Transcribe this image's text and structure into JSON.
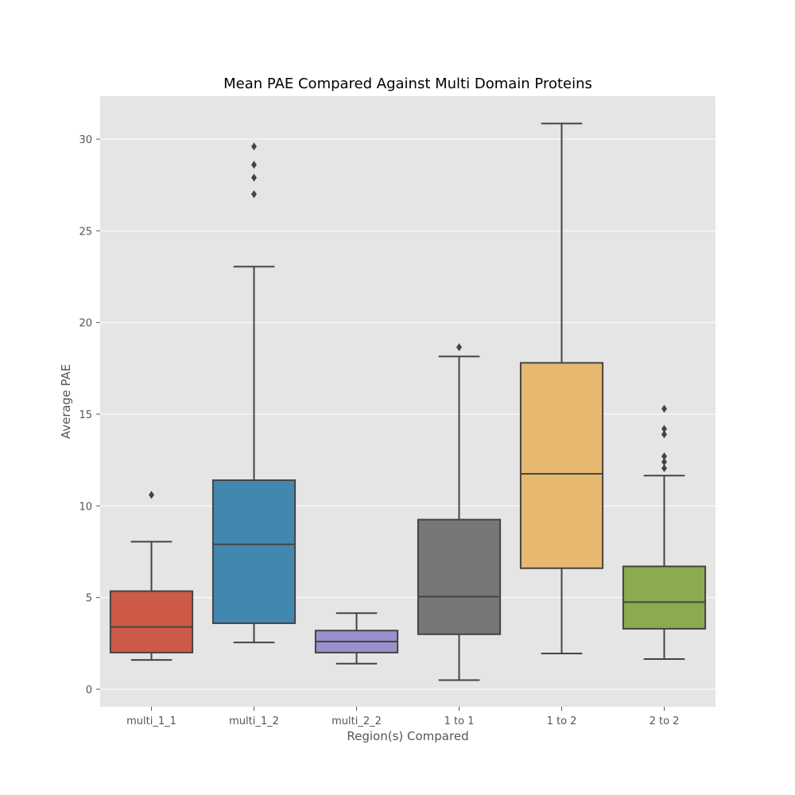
{
  "chart_data": {
    "type": "box",
    "title": "Mean PAE Compared Against Multi Domain Proteins",
    "xlabel": "Region(s) Compared",
    "ylabel": "Average PAE",
    "ylim": [
      -1,
      32.2
    ],
    "yticks": [
      0,
      5,
      10,
      15,
      20,
      25,
      30
    ],
    "grid": true,
    "background": "#e5e5e5",
    "line_color": "#444444",
    "categories": [
      "multi_1_1",
      "multi_1_2",
      "multi_2_2",
      "1 to 1",
      "1 to 2",
      "2 to 2"
    ],
    "boxes": [
      {
        "label": "multi_1_1",
        "color": "#cc5a47",
        "whisker_low": 1.6,
        "q1": 2.0,
        "median": 3.4,
        "q3": 5.35,
        "whisker_high": 8.05,
        "outliers": [
          10.6
        ]
      },
      {
        "label": "multi_1_2",
        "color": "#4187b0",
        "whisker_low": 2.55,
        "q1": 3.6,
        "median": 7.9,
        "q3": 11.4,
        "whisker_high": 23.05,
        "outliers": [
          27.0,
          27.9,
          28.6,
          29.6
        ]
      },
      {
        "label": "multi_2_2",
        "color": "#9a91cc",
        "whisker_low": 1.4,
        "q1": 2.0,
        "median": 2.6,
        "q3": 3.2,
        "whisker_high": 4.15,
        "outliers": []
      },
      {
        "label": "1 to 1",
        "color": "#777777",
        "whisker_low": 0.5,
        "q1": 3.0,
        "median": 5.05,
        "q3": 9.25,
        "whisker_high": 18.15,
        "outliers": [
          18.65
        ]
      },
      {
        "label": "1 to 2",
        "color": "#e6b96e",
        "whisker_low": 1.95,
        "q1": 6.6,
        "median": 11.75,
        "q3": 17.8,
        "whisker_high": 30.85,
        "outliers": []
      },
      {
        "label": "2 to 2",
        "color": "#8aab4e",
        "whisker_low": 1.65,
        "q1": 3.3,
        "median": 4.75,
        "q3": 6.7,
        "whisker_high": 11.65,
        "outliers": [
          12.05,
          12.4,
          12.7,
          13.9,
          14.2,
          15.3
        ]
      }
    ]
  }
}
